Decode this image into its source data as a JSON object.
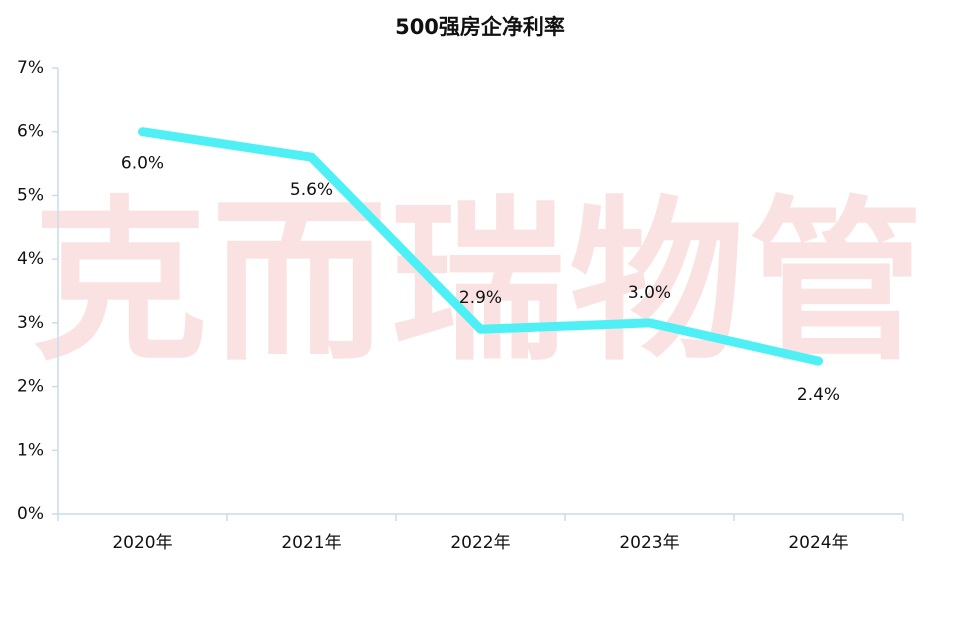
{
  "chart_data": {
    "type": "line",
    "title": "500强房企净利率",
    "watermark": "克而瑞物管",
    "categories": [
      "2020年",
      "2021年",
      "2022年",
      "2023年",
      "2024年"
    ],
    "series": [
      {
        "color": "#4ff0f5",
        "values": [
          6.0,
          5.6,
          2.9,
          3.0,
          2.4
        ],
        "value_labels": [
          "6.0%",
          "5.6%",
          "2.9%",
          "3.0%",
          "2.4%"
        ]
      }
    ],
    "ylim": [
      0,
      7
    ],
    "yticks": [
      {
        "value": 0,
        "label": "0%"
      },
      {
        "value": 1,
        "label": "1%"
      },
      {
        "value": 2,
        "label": "2%"
      },
      {
        "value": 3,
        "label": "3%"
      },
      {
        "value": 4,
        "label": "4%"
      },
      {
        "value": 5,
        "label": "5%"
      },
      {
        "value": 6,
        "label": "6%"
      },
      {
        "value": 7,
        "label": "7%"
      }
    ],
    "grid": false
  }
}
